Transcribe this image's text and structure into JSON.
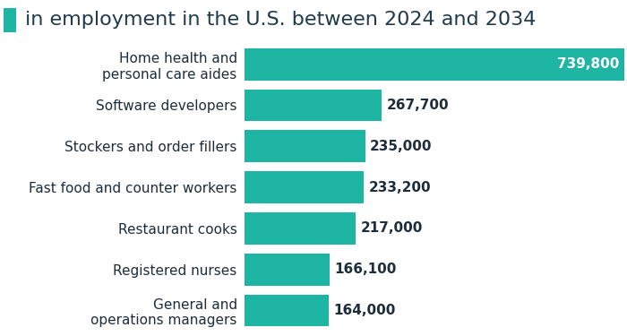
{
  "chart_data": {
    "type": "bar",
    "orientation": "horizontal",
    "title": "in employment in the U.S. between 2024 and 2034",
    "categories": [
      "Home health and\npersonal care aides",
      "Software developers",
      "Stockers and order fillers",
      "Fast food and counter workers",
      "Restaurant cooks",
      "Registered nurses",
      "General and\noperations managers"
    ],
    "values": [
      739800,
      267700,
      235000,
      233200,
      217000,
      166100,
      164000
    ],
    "value_labels": [
      "739,800",
      "267,700",
      "235,000",
      "233,200",
      "217,000",
      "166,100",
      "164,000"
    ],
    "data_labels": true,
    "tick_labels": "y",
    "grid": false,
    "color": "#1fb5a5",
    "xlim": [
      0,
      739800
    ],
    "xticks": []
  }
}
